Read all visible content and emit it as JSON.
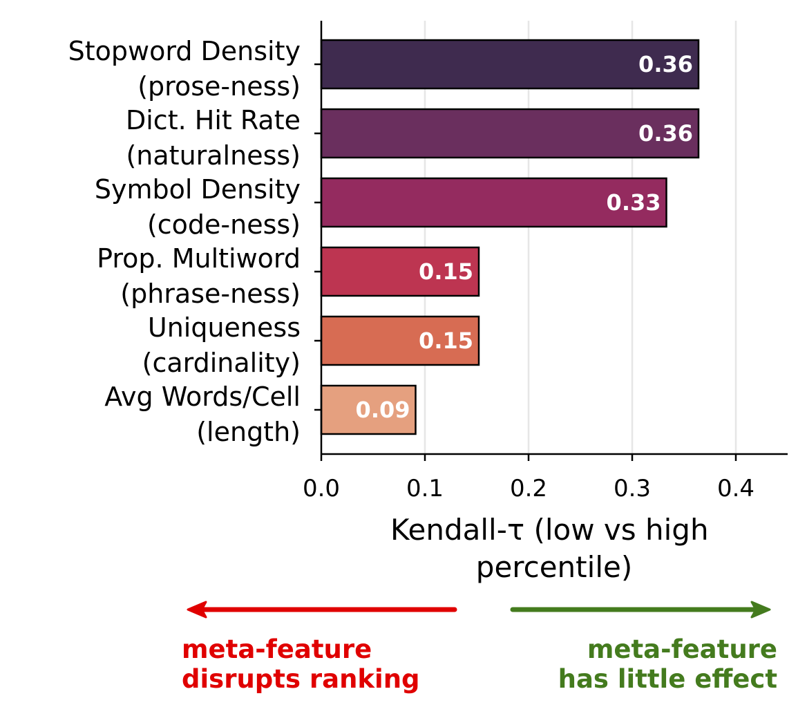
{
  "chart_data": {
    "type": "bar",
    "orientation": "horizontal",
    "categories": [
      [
        "Stopword Density",
        "(prose-ness)"
      ],
      [
        "Dict. Hit Rate",
        "(naturalness)"
      ],
      [
        "Symbol Density",
        "(code-ness)"
      ],
      [
        "Prop. Multiword",
        "(phrase-ness)"
      ],
      [
        "Uniqueness",
        "(cardinality)"
      ],
      [
        "Avg Words/Cell",
        "(length)"
      ]
    ],
    "values": [
      0.364,
      0.364,
      0.333,
      0.152,
      0.152,
      0.091
    ],
    "value_labels": [
      "0.36",
      "0.36",
      "0.33",
      "0.15",
      "0.15",
      "0.09"
    ],
    "colors": [
      "#3f2b4f",
      "#6a2f5e",
      "#942b5f",
      "#bd3551",
      "#d76c53",
      "#e5a07f"
    ],
    "xlabel": [
      "Kendall-τ (low vs high",
      "percentile)"
    ],
    "xlim": [
      0,
      0.45
    ],
    "xticks": [
      0.0,
      0.1,
      0.2,
      0.3,
      0.4
    ],
    "xtick_labels": [
      "0.0",
      "0.1",
      "0.2",
      "0.3",
      "0.4"
    ],
    "grid": "x"
  },
  "annotations": {
    "left": {
      "lines": [
        "meta-feature",
        "disrupts ranking"
      ],
      "color": "#e00000",
      "direction": "left"
    },
    "right": {
      "lines": [
        "meta-feature",
        "has little effect"
      ],
      "color": "#447b1e",
      "direction": "right"
    }
  }
}
